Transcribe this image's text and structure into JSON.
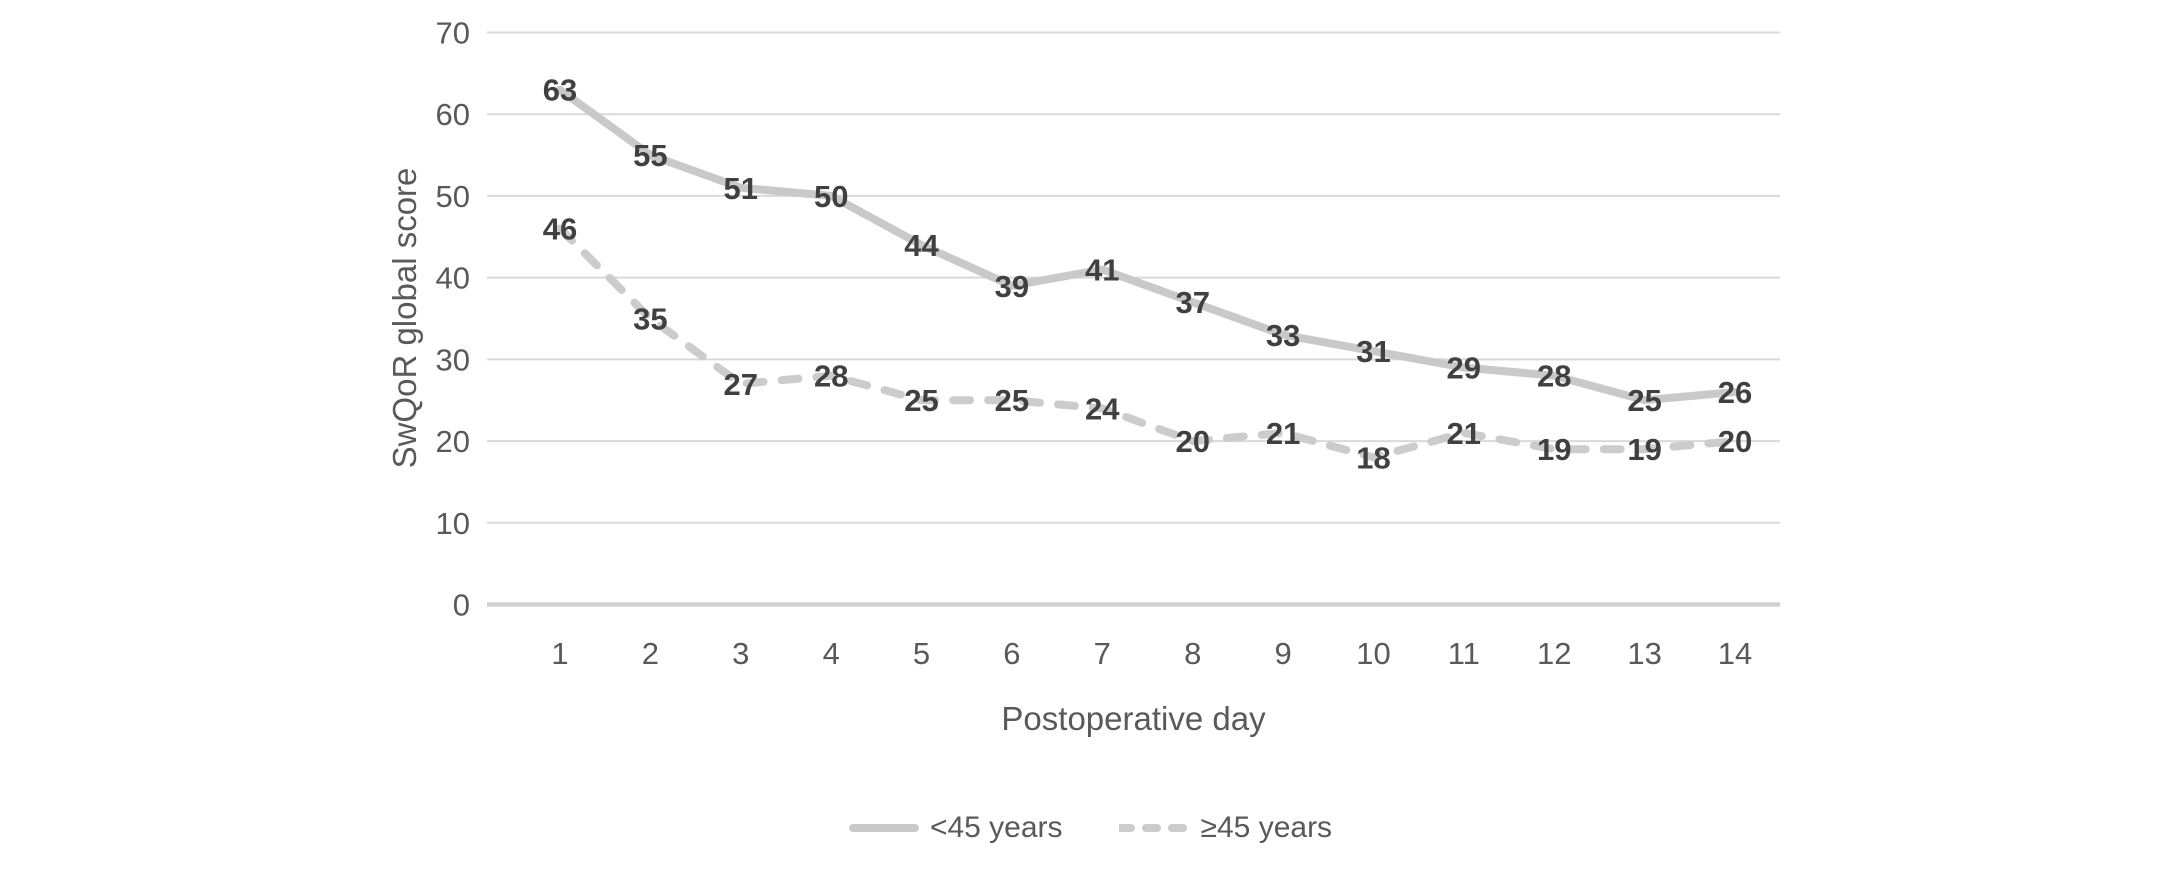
{
  "chart_data": {
    "type": "line",
    "title": "",
    "xlabel": "Postoperative day",
    "ylabel": "SwQoR global score",
    "x": [
      1,
      2,
      3,
      4,
      5,
      6,
      7,
      8,
      9,
      10,
      11,
      12,
      13,
      14
    ],
    "xticks": [
      "1",
      "2",
      "3",
      "4",
      "5",
      "6",
      "7",
      "8",
      "9",
      "10",
      "11",
      "12",
      "13",
      "14"
    ],
    "ylim": [
      0,
      70
    ],
    "yticks": [
      0,
      10,
      20,
      30,
      40,
      50,
      60,
      70
    ],
    "grid": true,
    "data_labels": true,
    "legend_position": "bottom",
    "series": [
      {
        "name": "<45 years",
        "style": "solid",
        "color": "#c9c9c9",
        "values": [
          63,
          55,
          51,
          50,
          44,
          39,
          41,
          37,
          33,
          31,
          29,
          28,
          25,
          26
        ]
      },
      {
        "name": "≥45 years",
        "style": "dashed",
        "color": "#cccccc",
        "values": [
          46,
          35,
          27,
          28,
          25,
          25,
          24,
          20,
          21,
          18,
          21,
          19,
          19,
          20
        ]
      }
    ]
  },
  "colors": {
    "background": "#ffffff",
    "gridline": "#d9d9d9",
    "axis_line": "#d0d0d0",
    "tick_text": "#595959",
    "data_label_text": "#404040"
  }
}
